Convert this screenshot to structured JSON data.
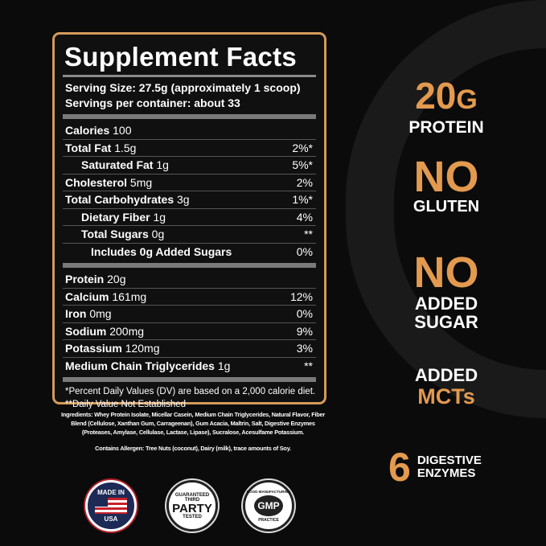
{
  "facts": {
    "title": "Supplement Facts",
    "serving_size": "Serving Size: 27.5g (approximately 1 scoop)",
    "servings": "Servings per container: about 33",
    "group1": [
      {
        "label": "Calories",
        "amount": "100",
        "dv": "",
        "indent": 0
      },
      {
        "label": "Total Fat",
        "amount": "1.5g",
        "dv": "2%*",
        "indent": 0
      },
      {
        "label": "Saturated Fat",
        "amount": "1g",
        "dv": "5%*",
        "indent": 1
      },
      {
        "label": "Cholesterol",
        "amount": "5mg",
        "dv": "2%",
        "indent": 0
      },
      {
        "label": "Total Carbohydrates",
        "amount": "3g",
        "dv": "1%*",
        "indent": 0
      },
      {
        "label": "Dietary Fiber",
        "amount": "1g",
        "dv": "4%",
        "indent": 1
      },
      {
        "label": "Total Sugars",
        "amount": "0g",
        "dv": "**",
        "indent": 1
      },
      {
        "label": "Includes 0g Added Sugars",
        "amount": "",
        "dv": "0%",
        "indent": 2
      }
    ],
    "group2": [
      {
        "label": "Protein",
        "amount": "20g",
        "dv": "",
        "indent": 0
      },
      {
        "label": "Calcium",
        "amount": "161mg",
        "dv": "12%",
        "indent": 0
      },
      {
        "label": "Iron",
        "amount": "0mg",
        "dv": "0%",
        "indent": 0
      },
      {
        "label": "Sodium",
        "amount": "200mg",
        "dv": "9%",
        "indent": 0
      },
      {
        "label": "Potassium",
        "amount": "120mg",
        "dv": "3%",
        "indent": 0
      },
      {
        "label": "Medium Chain Triglycerides",
        "amount": "1g",
        "dv": "**",
        "indent": 0
      }
    ],
    "footnote1": "*Percent Daily Values (DV) are based on a 2,000 calorie diet.",
    "footnote2": "**Daily Value Not Established"
  },
  "ingredients": "Ingredients: Whey Protein Isolate, Micellar Casein, Medium Chain Triglycerides, Natural Flavor, Fiber Blend (Cellulose, Xanthan Gum, Carrageenan), Gum Acacia, Maltrin, Salt, Digestive Enzymes (Proteases, Amylase, Cellulase, Lactase, Lipase), Sucralose, Acesulfame Potassium.",
  "allergen": "Contains Allergen: Tree Nuts (coconut), Dairy (milk), trace amounts of Soy.",
  "badges": {
    "usa": {
      "top": "MADE IN",
      "bottom": "USA"
    },
    "third_party": {
      "top": "GUARANTEED",
      "mid1": "THIRD",
      "mid2": "PARTY",
      "bottom": "TESTED"
    },
    "gmp": {
      "top": "GOOD MANUFACTURING",
      "mid": "GMP",
      "bottom": "PRACTICE"
    }
  },
  "claims": {
    "protein_value": "20",
    "protein_unit": "G",
    "protein_label": "PROTEIN",
    "gluten_big": "NO",
    "gluten_label": "GLUTEN",
    "sugar_big": "NO",
    "sugar_label1": "ADDED",
    "sugar_label2": "SUGAR",
    "mct_label": "ADDED",
    "mct_big": "MCTs",
    "enzyme_num": "6",
    "enzyme_label1": "DIGESTIVE",
    "enzyme_label2": "ENZYMES"
  },
  "colors": {
    "accent": "#e39a4e",
    "background": "#0b0b0c",
    "border": "#d49a5a"
  }
}
